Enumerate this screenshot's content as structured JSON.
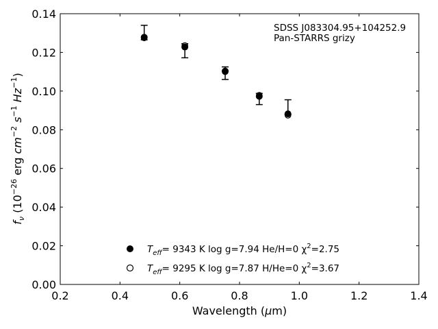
{
  "chart_data": {
    "type": "scatter",
    "xlabel": "Wavelength (μm)",
    "ylabel": "f_ν (10^-26 erg cm^-2 s^-1 Hz^-1)",
    "xlim": [
      0.2,
      1.4
    ],
    "ylim": [
      0.0,
      0.14
    ],
    "x_ticks": [
      "0.2",
      "0.4",
      "0.6",
      "0.8",
      "1.0",
      "1.2",
      "1.4"
    ],
    "y_ticks": [
      "0.00",
      "0.02",
      "0.04",
      "0.06",
      "0.08",
      "0.10",
      "0.12",
      "0.14"
    ],
    "x_tick_values": [
      0.2,
      0.4,
      0.6,
      0.8,
      1.0,
      1.2,
      1.4
    ],
    "y_tick_values": [
      0.0,
      0.02,
      0.04,
      0.06,
      0.08,
      0.1,
      0.12,
      0.14
    ],
    "annotation": [
      "SDSS J083304.95+104252.9",
      "Pan-STARRS grizy"
    ],
    "observed": {
      "x": [
        0.481,
        0.617,
        0.752,
        0.866,
        0.962
      ],
      "y_low": [
        0.1265,
        0.1172,
        0.106,
        0.093,
        0.0878
      ],
      "y_high": [
        0.134,
        0.1245,
        0.1125,
        0.0988,
        0.0955
      ]
    },
    "series": [
      {
        "name": "Teff= 9343 K log g=7.94 He/H=0 χ2=2.75",
        "marker": "filled",
        "x": [
          0.481,
          0.617,
          0.752,
          0.866,
          0.962
        ],
        "y": [
          0.1278,
          0.1228,
          0.1103,
          0.0973,
          0.0882
        ]
      },
      {
        "name": "Teff= 9295 K log g=7.87 H/He=0 χ2=3.67",
        "marker": "open",
        "x": [
          0.481,
          0.617,
          0.752,
          0.866,
          0.962
        ],
        "y": [
          0.1275,
          0.1235,
          0.11,
          0.0978,
          0.0875
        ]
      }
    ],
    "legend": {
      "placement": "lower-center",
      "entries": [
        {
          "teff_label": "T",
          "teff_sub": "eff",
          "text": "=  9343 K  log g=7.94  He/H=0  χ",
          "chi_sup": "2",
          "chi_val": "=2.75"
        },
        {
          "teff_label": "T",
          "teff_sub": "eff",
          "text": "=  9295 K  log g=7.87  H/He=0  χ",
          "chi_sup": "2",
          "chi_val": "=3.67"
        }
      ]
    }
  }
}
